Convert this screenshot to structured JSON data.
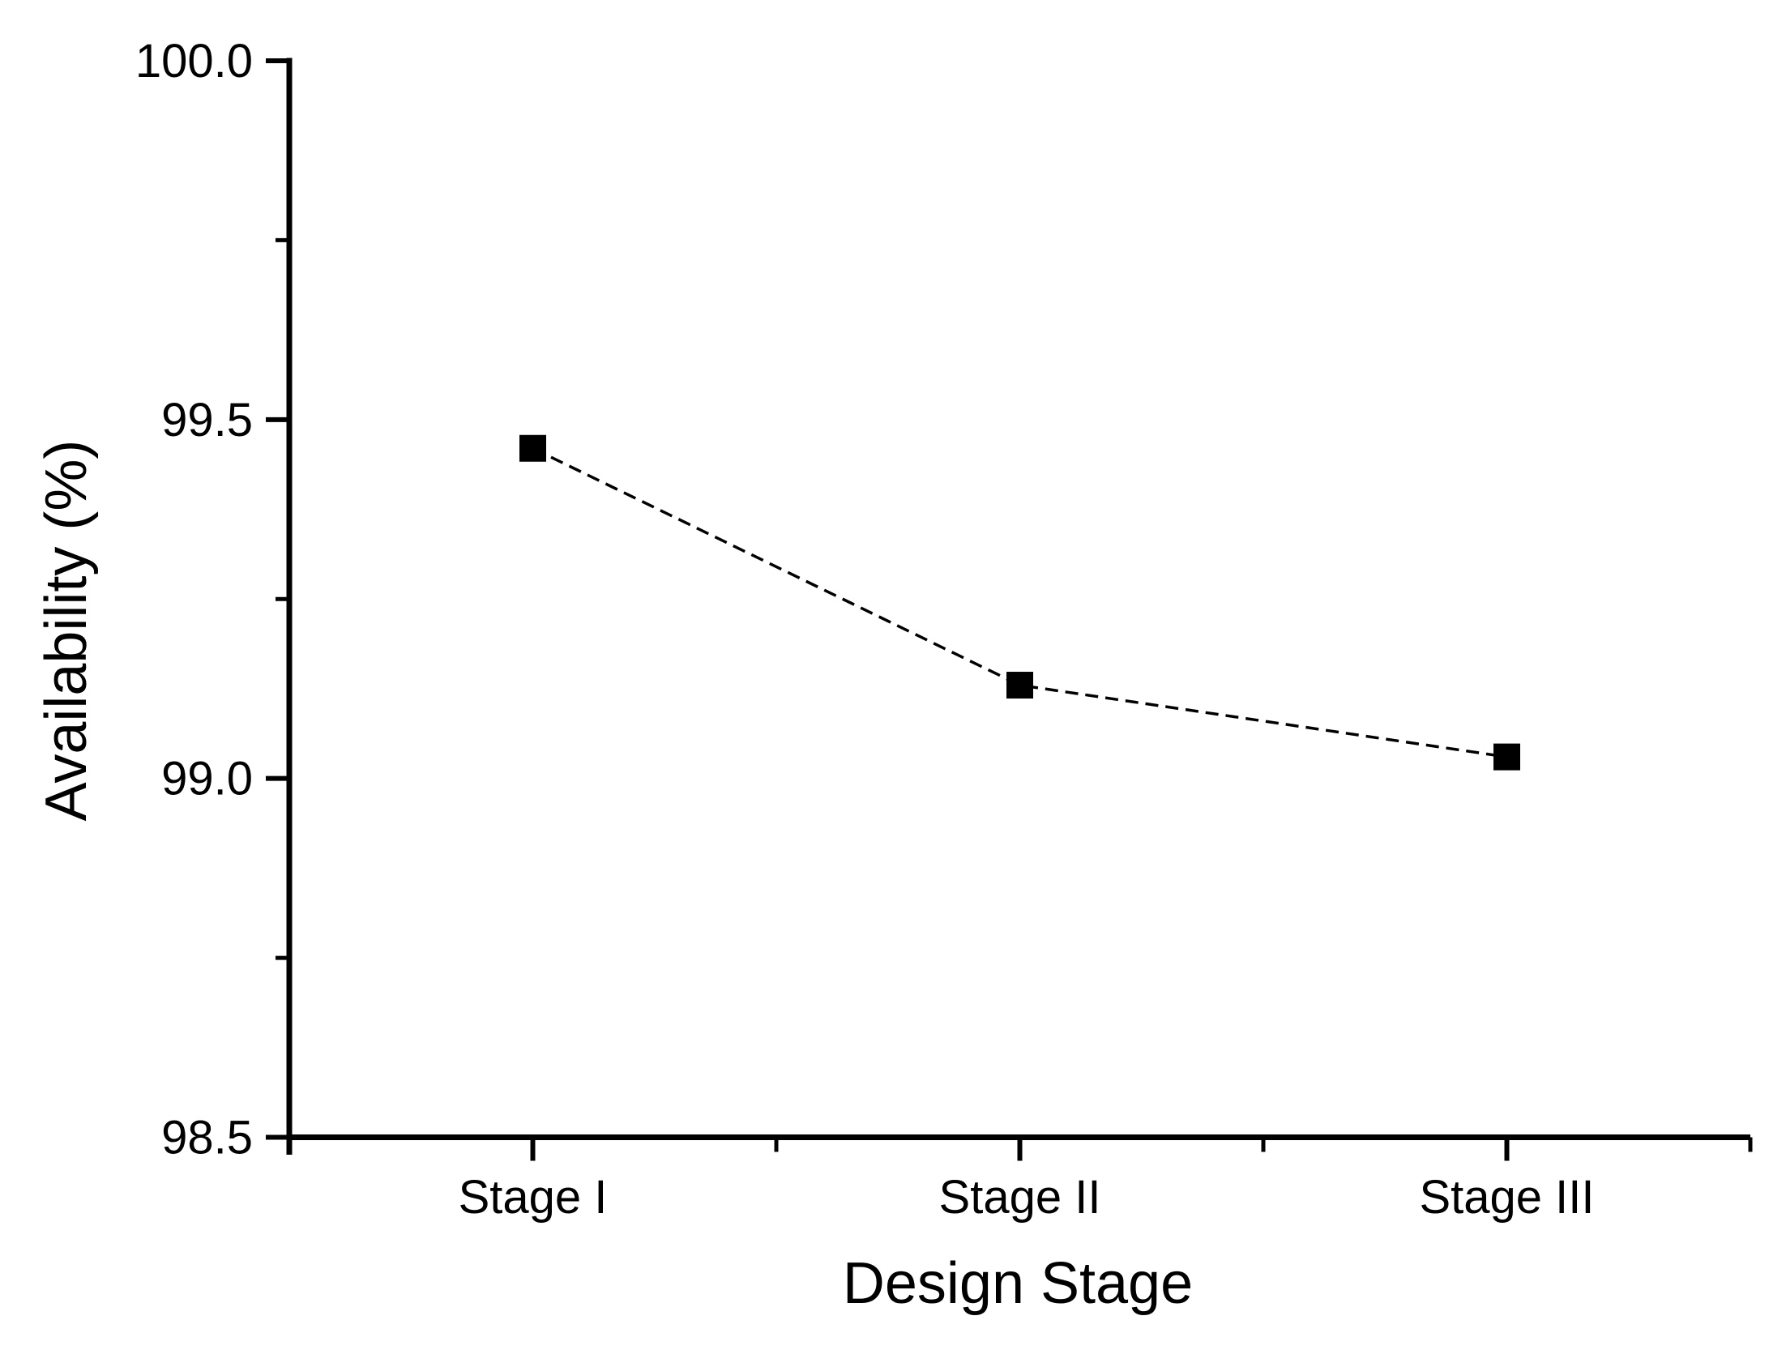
{
  "chart_data": {
    "type": "line",
    "title": "",
    "xlabel": "Design Stage",
    "ylabel": "Availability (%)",
    "categories": [
      "Stage I",
      "Stage II",
      "Stage III"
    ],
    "values": [
      99.46,
      99.13,
      99.03
    ],
    "series": [
      {
        "name": "Availability",
        "values": [
          99.46,
          99.13,
          99.03
        ]
      }
    ],
    "ylim": [
      98.5,
      100.0
    ],
    "y_major_ticks": [
      100.0,
      99.5,
      99.0,
      98.5
    ],
    "y_major_tick_labels": [
      "100.0",
      "99.5",
      "99.0",
      "98.5"
    ],
    "y_minor_ticks": [
      99.75,
      99.25,
      98.75
    ],
    "x_minor_positions": [
      0.5,
      1.5,
      2.5,
      3.5
    ],
    "grid": false,
    "legend_position": "none",
    "line_style": "dashed",
    "marker": "filled-square",
    "line_color": "#000000",
    "marker_color": "#000000",
    "axis_color": "#000000",
    "text_color": "#000000",
    "background_color": "#ffffff"
  }
}
